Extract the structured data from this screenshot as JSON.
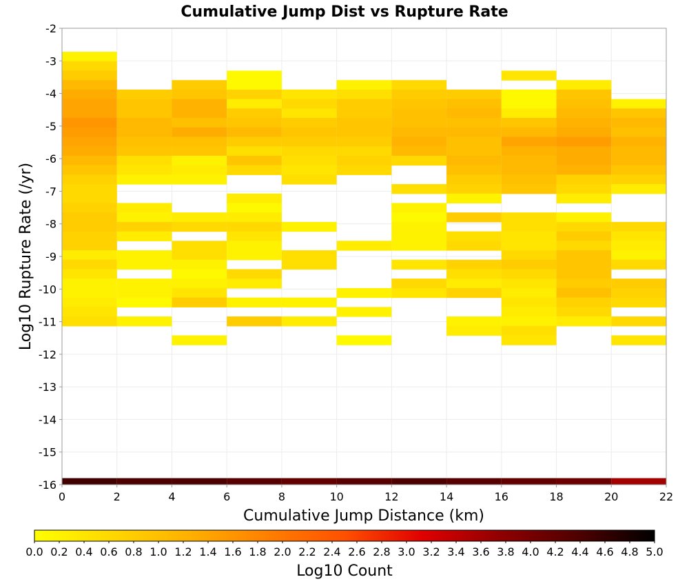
{
  "chart_data": {
    "type": "heatmap",
    "title": "Cumulative Jump Dist vs Rupture Rate",
    "xlabel": "Cumulative Jump Distance (km)",
    "ylabel": "Log10 Rupture Rate (/yr)",
    "xlim": [
      0,
      22
    ],
    "ylim": [
      -16,
      -2
    ],
    "x_ticks": [
      "0",
      "2",
      "4",
      "6",
      "8",
      "10",
      "12",
      "14",
      "16",
      "18",
      "20",
      "22"
    ],
    "y_ticks": [
      "-2",
      "-3",
      "-4",
      "-5",
      "-6",
      "-7",
      "-8",
      "-9",
      "-10",
      "-11",
      "-12",
      "-13",
      "-14",
      "-15",
      "-16"
    ],
    "x_bin_width": 2,
    "y_bin_height": 0.29,
    "colorbar": {
      "label": "Log10 Count",
      "range": [
        0.0,
        5.0
      ],
      "ticks": [
        "0.0",
        "0.2",
        "0.4",
        "0.6",
        "0.8",
        "1.0",
        "1.2",
        "1.4",
        "1.6",
        "1.8",
        "2.0",
        "2.2",
        "2.4",
        "2.6",
        "2.8",
        "3.0",
        "3.2",
        "3.4",
        "3.6",
        "3.8",
        "4.0",
        "4.2",
        "4.4",
        "4.6",
        "4.8",
        "5.0"
      ],
      "colors": [
        "#ffff00",
        "#ffd700",
        "#ffb000",
        "#ff8000",
        "#ff5000",
        "#e00000",
        "#900000",
        "#500000",
        "#000000"
      ]
    },
    "columns": [
      {
        "x_start": 0,
        "cells": [
          [
            -2.72,
            0.2
          ],
          [
            -3.01,
            0.6
          ],
          [
            -3.3,
            0.8
          ],
          [
            -3.59,
            1.1
          ],
          [
            -3.88,
            1.3
          ],
          [
            -4.17,
            1.4
          ],
          [
            -4.46,
            1.4
          ],
          [
            -4.75,
            1.6
          ],
          [
            -5.04,
            1.5
          ],
          [
            -5.33,
            1.4
          ],
          [
            -5.62,
            1.3
          ],
          [
            -5.91,
            1.1
          ],
          [
            -6.2,
            0.9
          ],
          [
            -6.49,
            0.7
          ],
          [
            -6.78,
            0.6
          ],
          [
            -7.07,
            0.6
          ],
          [
            -7.36,
            0.7
          ],
          [
            -7.65,
            0.8
          ],
          [
            -7.94,
            0.8
          ],
          [
            -8.23,
            0.7
          ],
          [
            -8.52,
            0.7
          ],
          [
            -8.81,
            0.3
          ],
          [
            -9.1,
            0.6
          ],
          [
            -9.39,
            0.4
          ],
          [
            -9.68,
            0.2
          ],
          [
            -9.97,
            0.2
          ],
          [
            -10.26,
            0.3
          ],
          [
            -10.55,
            0.4
          ],
          [
            -10.84,
            0.5
          ]
        ]
      },
      {
        "x_start": 2,
        "cells": [
          [
            -3.88,
            0.8
          ],
          [
            -4.17,
            0.9
          ],
          [
            -4.46,
            0.9
          ],
          [
            -4.75,
            1.1
          ],
          [
            -5.04,
            1.1
          ],
          [
            -5.33,
            1.0
          ],
          [
            -5.62,
            0.9
          ],
          [
            -5.91,
            0.5
          ],
          [
            -6.2,
            0.4
          ],
          [
            -6.49,
            0.2
          ],
          [
            -7.36,
            0.3
          ],
          [
            -7.65,
            0.2
          ],
          [
            -7.94,
            0.7
          ],
          [
            -8.23,
            0.3
          ],
          [
            -8.81,
            0.2
          ],
          [
            -9.1,
            0.2
          ],
          [
            -9.68,
            0.2
          ],
          [
            -9.97,
            0.2
          ],
          [
            -10.26,
            0.1
          ],
          [
            -10.84,
            0.2
          ]
        ]
      },
      {
        "x_start": 4,
        "cells": [
          [
            -3.59,
            0.8
          ],
          [
            -3.88,
            0.9
          ],
          [
            -4.17,
            1.2
          ],
          [
            -4.46,
            1.2
          ],
          [
            -4.75,
            1.0
          ],
          [
            -5.04,
            1.3
          ],
          [
            -5.33,
            1.0
          ],
          [
            -5.62,
            0.9
          ],
          [
            -5.91,
            0.2
          ],
          [
            -6.2,
            0.3
          ],
          [
            -6.49,
            0.2
          ],
          [
            -7.65,
            0.3
          ],
          [
            -7.94,
            0.6
          ],
          [
            -8.52,
            0.5
          ],
          [
            -8.81,
            0.5
          ],
          [
            -9.1,
            0.2
          ],
          [
            -9.39,
            0.1
          ],
          [
            -9.68,
            0.2
          ],
          [
            -9.97,
            0.4
          ],
          [
            -10.26,
            0.8
          ],
          [
            -11.42,
            0.2
          ]
        ]
      },
      {
        "x_start": 6,
        "cells": [
          [
            -3.3,
            0.1
          ],
          [
            -3.59,
            0.1
          ],
          [
            -3.88,
            0.7
          ],
          [
            -4.17,
            0.3
          ],
          [
            -4.46,
            0.8
          ],
          [
            -4.75,
            0.9
          ],
          [
            -5.04,
            1.1
          ],
          [
            -5.33,
            0.8
          ],
          [
            -5.62,
            0.5
          ],
          [
            -5.91,
            0.9
          ],
          [
            -6.2,
            0.6
          ],
          [
            -7.07,
            0.3
          ],
          [
            -7.36,
            0.1
          ],
          [
            -7.65,
            0.3
          ],
          [
            -7.94,
            0.6
          ],
          [
            -8.23,
            0.4
          ],
          [
            -8.52,
            0.2
          ],
          [
            -8.81,
            0.2
          ],
          [
            -9.39,
            0.6
          ],
          [
            -9.68,
            0.3
          ],
          [
            -10.26,
            0.2
          ],
          [
            -10.84,
            0.8
          ]
        ]
      },
      {
        "x_start": 8,
        "cells": [
          [
            -3.88,
            0.4
          ],
          [
            -4.17,
            0.6
          ],
          [
            -4.46,
            0.4
          ],
          [
            -4.75,
            0.8
          ],
          [
            -5.04,
            0.9
          ],
          [
            -5.33,
            0.8
          ],
          [
            -5.62,
            0.6
          ],
          [
            -5.91,
            0.5
          ],
          [
            -6.2,
            0.4
          ],
          [
            -6.49,
            0.5
          ],
          [
            -7.94,
            0.2
          ],
          [
            -8.81,
            0.5
          ],
          [
            -9.1,
            0.5
          ],
          [
            -10.26,
            0.2
          ],
          [
            -10.84,
            0.3
          ]
        ]
      },
      {
        "x_start": 10,
        "cells": [
          [
            -3.59,
            0.2
          ],
          [
            -3.88,
            0.5
          ],
          [
            -4.17,
            0.8
          ],
          [
            -4.46,
            0.8
          ],
          [
            -4.75,
            0.9
          ],
          [
            -5.04,
            0.9
          ],
          [
            -5.33,
            0.8
          ],
          [
            -5.62,
            0.6
          ],
          [
            -5.91,
            0.7
          ],
          [
            -6.2,
            0.6
          ],
          [
            -8.52,
            0.3
          ],
          [
            -9.97,
            0.2
          ],
          [
            -10.55,
            0.2
          ],
          [
            -11.42,
            0.1
          ]
        ]
      },
      {
        "x_start": 12,
        "cells": [
          [
            -3.59,
            0.6
          ],
          [
            -3.88,
            0.8
          ],
          [
            -4.17,
            0.9
          ],
          [
            -4.46,
            1.0
          ],
          [
            -4.75,
            1.0
          ],
          [
            -5.04,
            1.1
          ],
          [
            -5.33,
            1.2
          ],
          [
            -5.62,
            1.1
          ],
          [
            -5.91,
            0.6
          ],
          [
            -6.78,
            0.5
          ],
          [
            -7.36,
            0.2
          ],
          [
            -7.65,
            0.1
          ],
          [
            -7.94,
            0.2
          ],
          [
            -8.23,
            0.2
          ],
          [
            -8.52,
            0.2
          ],
          [
            -9.1,
            0.4
          ],
          [
            -9.68,
            0.6
          ],
          [
            -9.97,
            0.4
          ]
        ]
      },
      {
        "x_start": 14,
        "cells": [
          [
            -3.88,
            0.8
          ],
          [
            -4.17,
            1.0
          ],
          [
            -4.46,
            1.1
          ],
          [
            -4.75,
            1.0
          ],
          [
            -5.04,
            1.1
          ],
          [
            -5.33,
            1.0
          ],
          [
            -5.62,
            1.0
          ],
          [
            -5.91,
            1.1
          ],
          [
            -6.2,
            1.0
          ],
          [
            -6.49,
            0.8
          ],
          [
            -6.78,
            0.7
          ],
          [
            -7.07,
            0.2
          ],
          [
            -7.65,
            0.8
          ],
          [
            -8.23,
            0.5
          ],
          [
            -8.52,
            0.6
          ],
          [
            -9.1,
            0.7
          ],
          [
            -9.39,
            0.5
          ],
          [
            -9.68,
            0.3
          ],
          [
            -9.97,
            0.7
          ],
          [
            -10.84,
            0.2
          ],
          [
            -11.13,
            0.3
          ]
        ]
      },
      {
        "x_start": 16,
        "cells": [
          [
            -3.3,
            0.4
          ],
          [
            -3.88,
            0.1
          ],
          [
            -4.17,
            0.1
          ],
          [
            -4.46,
            0.3
          ],
          [
            -4.75,
            0.9
          ],
          [
            -5.04,
            1.1
          ],
          [
            -5.33,
            1.4
          ],
          [
            -5.62,
            1.2
          ],
          [
            -5.91,
            1.1
          ],
          [
            -6.2,
            1.1
          ],
          [
            -6.49,
            1.0
          ],
          [
            -6.78,
            0.9
          ],
          [
            -7.65,
            0.5
          ],
          [
            -7.94,
            0.5
          ],
          [
            -8.23,
            0.4
          ],
          [
            -8.52,
            0.4
          ],
          [
            -8.81,
            0.6
          ],
          [
            -9.1,
            0.8
          ],
          [
            -9.39,
            0.6
          ],
          [
            -9.68,
            0.4
          ],
          [
            -9.97,
            0.3
          ],
          [
            -10.26,
            0.4
          ],
          [
            -10.55,
            0.3
          ],
          [
            -10.84,
            0.2
          ],
          [
            -11.13,
            0.5
          ],
          [
            -11.42,
            0.4
          ]
        ]
      },
      {
        "x_start": 18,
        "cells": [
          [
            -3.59,
            0.3
          ],
          [
            -3.88,
            0.9
          ],
          [
            -4.17,
            1.0
          ],
          [
            -4.46,
            1.1
          ],
          [
            -4.75,
            1.2
          ],
          [
            -5.04,
            1.3
          ],
          [
            -5.33,
            1.5
          ],
          [
            -5.62,
            1.3
          ],
          [
            -5.91,
            1.3
          ],
          [
            -6.2,
            1.2
          ],
          [
            -6.49,
            0.7
          ],
          [
            -6.78,
            0.6
          ],
          [
            -7.07,
            0.3
          ],
          [
            -7.65,
            0.2
          ],
          [
            -7.94,
            0.6
          ],
          [
            -8.23,
            0.8
          ],
          [
            -8.52,
            0.6
          ],
          [
            -8.81,
            0.9
          ],
          [
            -9.1,
            0.9
          ],
          [
            -9.39,
            0.9
          ],
          [
            -9.68,
            0.8
          ],
          [
            -9.97,
            1.0
          ],
          [
            -10.26,
            0.7
          ],
          [
            -10.55,
            0.6
          ],
          [
            -10.84,
            0.3
          ]
        ]
      },
      {
        "x_start": 20,
        "cells": [
          [
            -4.17,
            0.2
          ],
          [
            -4.46,
            0.9
          ],
          [
            -4.75,
            1.1
          ],
          [
            -5.04,
            1.0
          ],
          [
            -5.33,
            1.2
          ],
          [
            -5.62,
            1.1
          ],
          [
            -5.91,
            1.1
          ],
          [
            -6.2,
            0.9
          ],
          [
            -6.49,
            0.7
          ],
          [
            -6.78,
            0.3
          ],
          [
            -7.94,
            0.6
          ],
          [
            -8.23,
            0.4
          ],
          [
            -8.52,
            0.3
          ],
          [
            -8.81,
            0.2
          ],
          [
            -9.1,
            0.6
          ],
          [
            -9.68,
            0.8
          ],
          [
            -9.97,
            0.7
          ],
          [
            -10.26,
            0.6
          ],
          [
            -10.84,
            0.6
          ],
          [
            -11.42,
            0.4
          ]
        ]
      }
    ],
    "bottom_row": {
      "y": -16,
      "height": 0.2,
      "values": [
        4.5,
        4.4,
        4.4,
        4.3,
        4.2,
        4.3,
        4.4,
        4.3,
        4.2,
        4.1,
        3.6
      ]
    }
  }
}
